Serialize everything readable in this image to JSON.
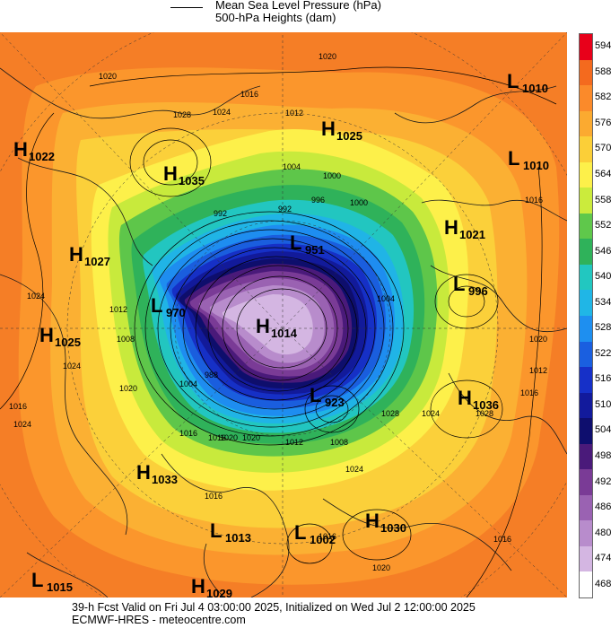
{
  "legend": {
    "line1": "Mean Sea Level Pressure (hPa)",
    "line2": "500-hPa Heights (dam)"
  },
  "colorbar": {
    "labels": [
      "594",
      "588",
      "582",
      "576",
      "570",
      "564",
      "558",
      "552",
      "546",
      "540",
      "534",
      "528",
      "522",
      "516",
      "510",
      "504",
      "498",
      "492",
      "486",
      "480",
      "474",
      "468"
    ],
    "colors": [
      "#e8001a",
      "#f46a1e",
      "#fb8a2a",
      "#fbaa30",
      "#fbcf38",
      "#fdf04a",
      "#cbeb3c",
      "#5fc84b",
      "#2fb25a",
      "#22c7c0",
      "#20b6e6",
      "#1e8ff0",
      "#1a5fe0",
      "#1630c8",
      "#121a9c",
      "#0e0e6e",
      "#4a1a7a",
      "#7a3b96",
      "#9a62b2",
      "#b88ccc",
      "#d4b6e2",
      "#ffffff"
    ]
  },
  "pressure_centers": [
    {
      "type": "L",
      "value": "1010"
    },
    {
      "type": "H",
      "value": "1025"
    },
    {
      "type": "H",
      "value": "1022"
    },
    {
      "type": "H",
      "value": "1035"
    },
    {
      "type": "L",
      "value": "1010"
    },
    {
      "type": "H",
      "value": "1021"
    },
    {
      "type": "L",
      "value": "951"
    },
    {
      "type": "H",
      "value": "1027"
    },
    {
      "type": "L",
      "value": "996"
    },
    {
      "type": "L",
      "value": "970"
    },
    {
      "type": "H",
      "value": "1014"
    },
    {
      "type": "H",
      "value": "1025"
    },
    {
      "type": "H",
      "value": "1036"
    },
    {
      "type": "L",
      "value": "923"
    },
    {
      "type": "H",
      "value": "1033"
    },
    {
      "type": "L",
      "value": "1013"
    },
    {
      "type": "L",
      "value": "1002"
    },
    {
      "type": "H",
      "value": "1030"
    },
    {
      "type": "L",
      "value": "1015"
    },
    {
      "type": "H",
      "value": "1029"
    }
  ],
  "isobar_labels": [
    "1020",
    "1020",
    "1016",
    "1012",
    "1028",
    "1024",
    "1004",
    "1000",
    "996",
    "992",
    "992",
    "1000",
    "1024",
    "1012",
    "1004",
    "1008",
    "1020",
    "1016",
    "1024",
    "1016",
    "1020",
    "1012",
    "1012",
    "1008",
    "1024",
    "1028",
    "1016",
    "1016",
    "1020",
    "1024",
    "1028",
    "1016",
    "1004",
    "988",
    "1020",
    "1016",
    "1016",
    "1020",
    "1016",
    "1024"
  ],
  "footer": {
    "line1": "39-h Fcst Valid on Fri Jul  4 03:00:00 2025, Initialized on Wed Jul  2 12:00:00 2025",
    "line2": "ECMWF-HRES  - meteocentre.com"
  }
}
